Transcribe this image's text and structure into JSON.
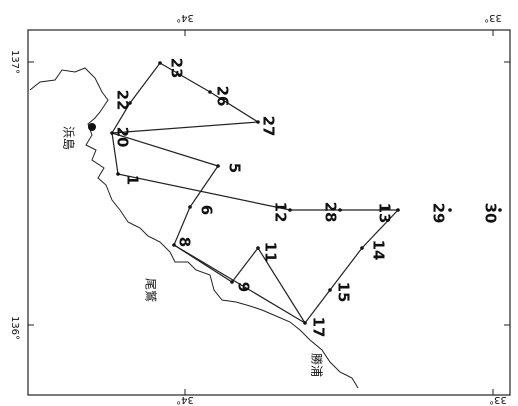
{
  "map": {
    "lat_labels": [
      "34°",
      "33°",
      "34°",
      "33°"
    ],
    "lon_labels": [
      "137°",
      "136°"
    ],
    "places": [
      "浜島",
      "尾鷲",
      "勝浦"
    ],
    "stations": [
      "20",
      "22",
      "23",
      "26",
      "27",
      "5",
      "1",
      "6",
      "12",
      "28",
      "13",
      "29",
      "30",
      "8",
      "11",
      "14",
      "9",
      "15",
      "17"
    ]
  }
}
